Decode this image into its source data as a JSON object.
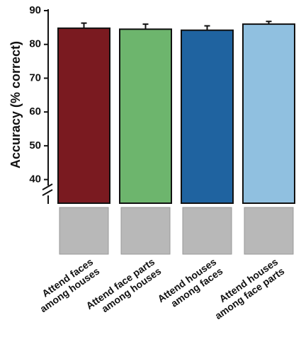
{
  "chart_data": {
    "type": "bar",
    "y_label": "Accuracy (% correct)",
    "categories": [
      [
        "Attend faces",
        "among houses"
      ],
      [
        "Attend face parts",
        "among houses"
      ],
      [
        "Attend houses",
        "among faces"
      ],
      [
        "Attend houses",
        "among face parts"
      ]
    ],
    "values": [
      84.8,
      84.5,
      84.2,
      86.0
    ],
    "errors": [
      1.5,
      1.5,
      1.3,
      0.8
    ],
    "colors": [
      "#7a1a20",
      "#6db56d",
      "#1f63a0",
      "#90c0e0"
    ],
    "ylim": [
      33,
      90
    ],
    "yticks": [
      40,
      50,
      60,
      70,
      80,
      90
    ]
  }
}
